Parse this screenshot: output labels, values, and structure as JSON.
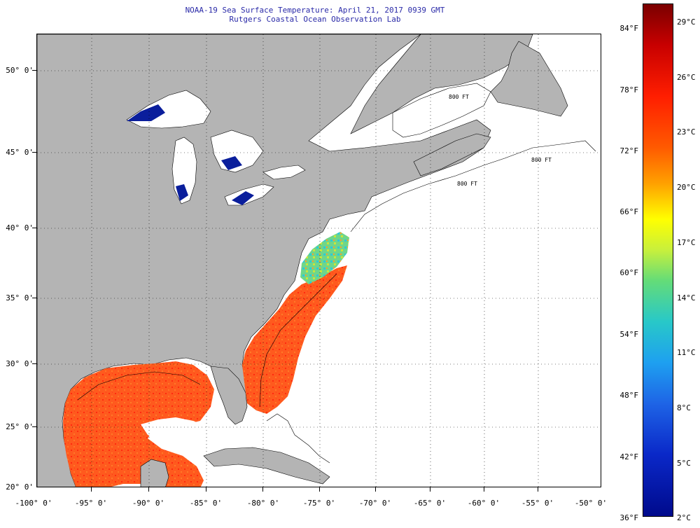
{
  "title": {
    "line1": "NOAA-19 Sea Surface Temperature:  April 21, 2017 0939 GMT",
    "line2": "Rutgers Coastal Ocean Observation Lab"
  },
  "axes": {
    "lat_labels": [
      "50° 0'",
      "45° 0'",
      "40° 0'",
      "35° 0'",
      "30° 0'",
      "25° 0'",
      "20° 0'"
    ],
    "lon_labels": [
      "-100° 0'",
      "-95° 0'",
      "-90° 0'",
      "-85° 0'",
      "-80° 0'",
      "-75° 0'",
      "-70° 0'",
      "-65° 0'",
      "-60° 0'",
      "-55° 0'",
      "-50° 0'"
    ]
  },
  "contour_labels": [
    "800 FT",
    "800 FT",
    "800 FT"
  ],
  "colorbar": {
    "fahrenheit_labels": [
      "84°F",
      "78°F",
      "72°F",
      "66°F",
      "60°F",
      "54°F",
      "48°F",
      "42°F",
      "36°F"
    ],
    "celsius_labels": [
      "29°C",
      "26°C",
      "23°C",
      "20°C",
      "17°C",
      "14°C",
      "11°C",
      "8°C",
      "5°C",
      "2°C"
    ]
  },
  "colors": {
    "land": "#b4b4b4",
    "ocean_no_data": "#ffffff",
    "sst_warm": "#ff3c14",
    "sst_mid": "#ff6a1e",
    "sst_cool": "#46d2c8",
    "sst_cold": "#0a1e9c",
    "title_text": "#2a2aa8"
  }
}
